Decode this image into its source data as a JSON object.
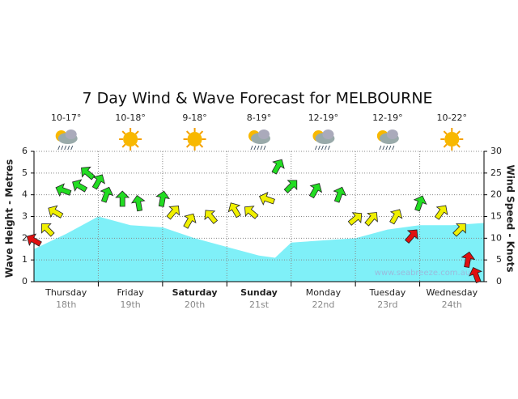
{
  "chart_data": {
    "type": "area",
    "title": "7 Day Wind & Wave Forecast for MELBOURNE",
    "y_label": "Wave Height - Metres",
    "y2_label": "Wind Speed - Knots",
    "watermark": "www.seabreeze.com.au",
    "categories": [
      "Thursday",
      "Friday",
      "Saturday",
      "Sunday",
      "Monday",
      "Tuesday",
      "Wednesday"
    ],
    "dates": [
      "18th",
      "19th",
      "20th",
      "21st",
      "22nd",
      "23rd",
      "24th"
    ],
    "temperatures": [
      "10-17°",
      "10-18°",
      "9-18°",
      "8-19°",
      "12-19°",
      "12-19°",
      "10-22°"
    ],
    "icons": [
      "rain",
      "sun",
      "sun",
      "rain",
      "rain",
      "rain",
      "sun"
    ],
    "bold": [
      false,
      false,
      true,
      true,
      false,
      false,
      false
    ],
    "xlim": [
      0,
      168
    ],
    "xticks": [
      24,
      48,
      72,
      96,
      120,
      144
    ],
    "ylim": [
      0,
      6
    ],
    "yticks": [
      0,
      1,
      2,
      3,
      4,
      5,
      6
    ],
    "y2lim": [
      0,
      30
    ],
    "y2ticks": [
      0,
      5,
      10,
      15,
      20,
      25,
      30
    ],
    "grid": true,
    "series": [
      {
        "name": "Wave Height",
        "color": "#7ff0f8",
        "x": [
          0,
          12,
          24,
          36,
          48,
          60,
          72,
          84,
          90,
          96,
          108,
          120,
          132,
          144,
          156,
          168
        ],
        "values": [
          1.5,
          2.2,
          3.0,
          2.6,
          2.5,
          2.0,
          1.6,
          1.2,
          1.1,
          1.8,
          1.9,
          2.0,
          2.4,
          2.6,
          2.6,
          2.7
        ]
      },
      {
        "name": "Wind Speed",
        "axis": "y2",
        "type": "arrows",
        "x": [
          0,
          5,
          8,
          11,
          17,
          20,
          24,
          27,
          33,
          39,
          48,
          52,
          58,
          66,
          75,
          81,
          87,
          91,
          96,
          105,
          114,
          120,
          126,
          135,
          141,
          144,
          152,
          159,
          162,
          165
        ],
        "values": [
          9.5,
          12,
          16,
          21,
          22,
          25,
          23,
          20,
          19,
          18,
          19,
          16,
          14,
          15,
          16.5,
          16,
          19,
          26.5,
          22,
          21,
          20,
          14.5,
          14.5,
          15,
          10.5,
          18,
          16,
          12,
          5,
          1.5
        ],
        "directions": [
          300,
          315,
          300,
          290,
          300,
          310,
          30,
          20,
          0,
          350,
          10,
          40,
          30,
          320,
          330,
          310,
          290,
          30,
          45,
          30,
          20,
          50,
          40,
          30,
          40,
          20,
          35,
          45,
          10,
          340
        ],
        "colors": [
          "#e01010",
          "#f0f000",
          "#f0f000",
          "#22dd22",
          "#22dd22",
          "#22dd22",
          "#22dd22",
          "#22dd22",
          "#22dd22",
          "#22dd22",
          "#22dd22",
          "#f0f000",
          "#f0f000",
          "#f0f000",
          "#f0f000",
          "#f0f000",
          "#f0f000",
          "#22dd22",
          "#22dd22",
          "#22dd22",
          "#22dd22",
          "#f0f000",
          "#f0f000",
          "#f0f000",
          "#e01010",
          "#22dd22",
          "#f0f000",
          "#f0f000",
          "#e01010",
          "#e01010"
        ]
      }
    ]
  }
}
